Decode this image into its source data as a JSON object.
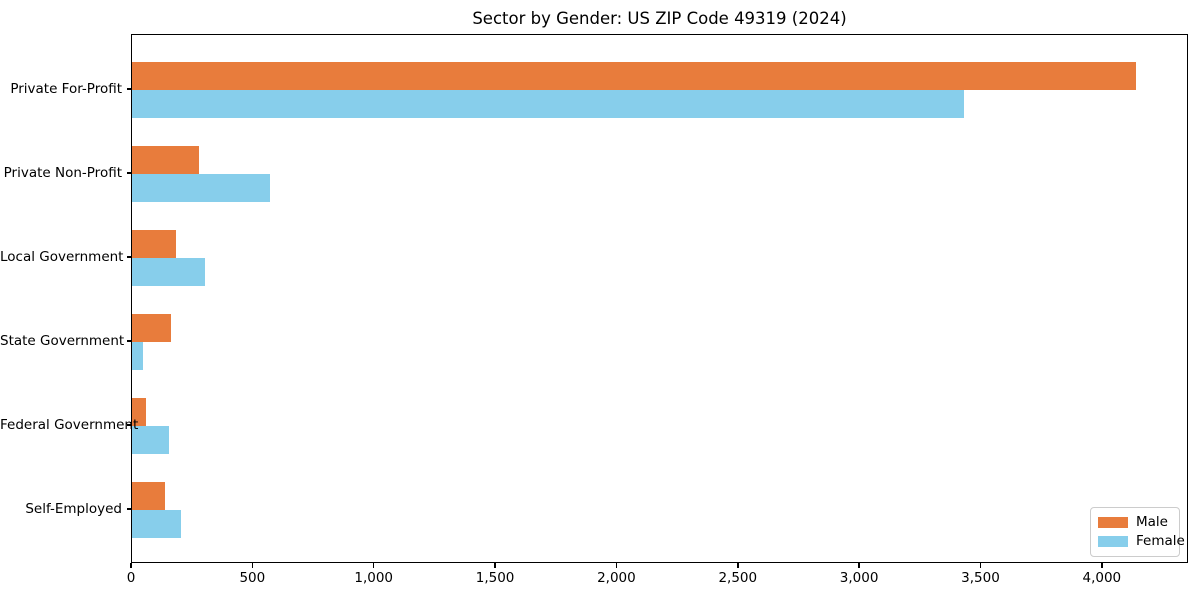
{
  "title": "Sector by Gender: US ZIP Code 49319 (2024)",
  "colors": {
    "male": "#E87C3C",
    "female": "#87CEEB",
    "axis": "#000000",
    "legend_border": "#CCCCCC",
    "background": "#FFFFFF"
  },
  "legend": {
    "position": "lower right",
    "items": [
      {
        "label": "Male",
        "color": "#E87C3C"
      },
      {
        "label": "Female",
        "color": "#87CEEB"
      }
    ]
  },
  "chart_data": {
    "type": "bar",
    "orientation": "horizontal",
    "title": "Sector by Gender: US ZIP Code 49319 (2024)",
    "categories": [
      "Private For-Profit",
      "Private Non-Profit",
      "Local Government",
      "State Government",
      "Federal Government",
      "Self-Employed"
    ],
    "series": [
      {
        "name": "Male",
        "color": "#E87C3C",
        "values": [
          4135,
          275,
          180,
          160,
          58,
          137
        ]
      },
      {
        "name": "Female",
        "color": "#87CEEB",
        "values": [
          3430,
          570,
          300,
          46,
          153,
          203
        ]
      }
    ],
    "xlabel": "",
    "ylabel": "",
    "xlim": [
      0,
      4355
    ],
    "xticks": [
      0,
      500,
      1000,
      1500,
      2000,
      2500,
      3000,
      3500,
      4000
    ],
    "xtick_labels": [
      "0",
      "500",
      "1,000",
      "1,500",
      "2,000",
      "2,500",
      "3,000",
      "3,500",
      "4,000"
    ],
    "grid": false,
    "legend_position": "lower right"
  }
}
